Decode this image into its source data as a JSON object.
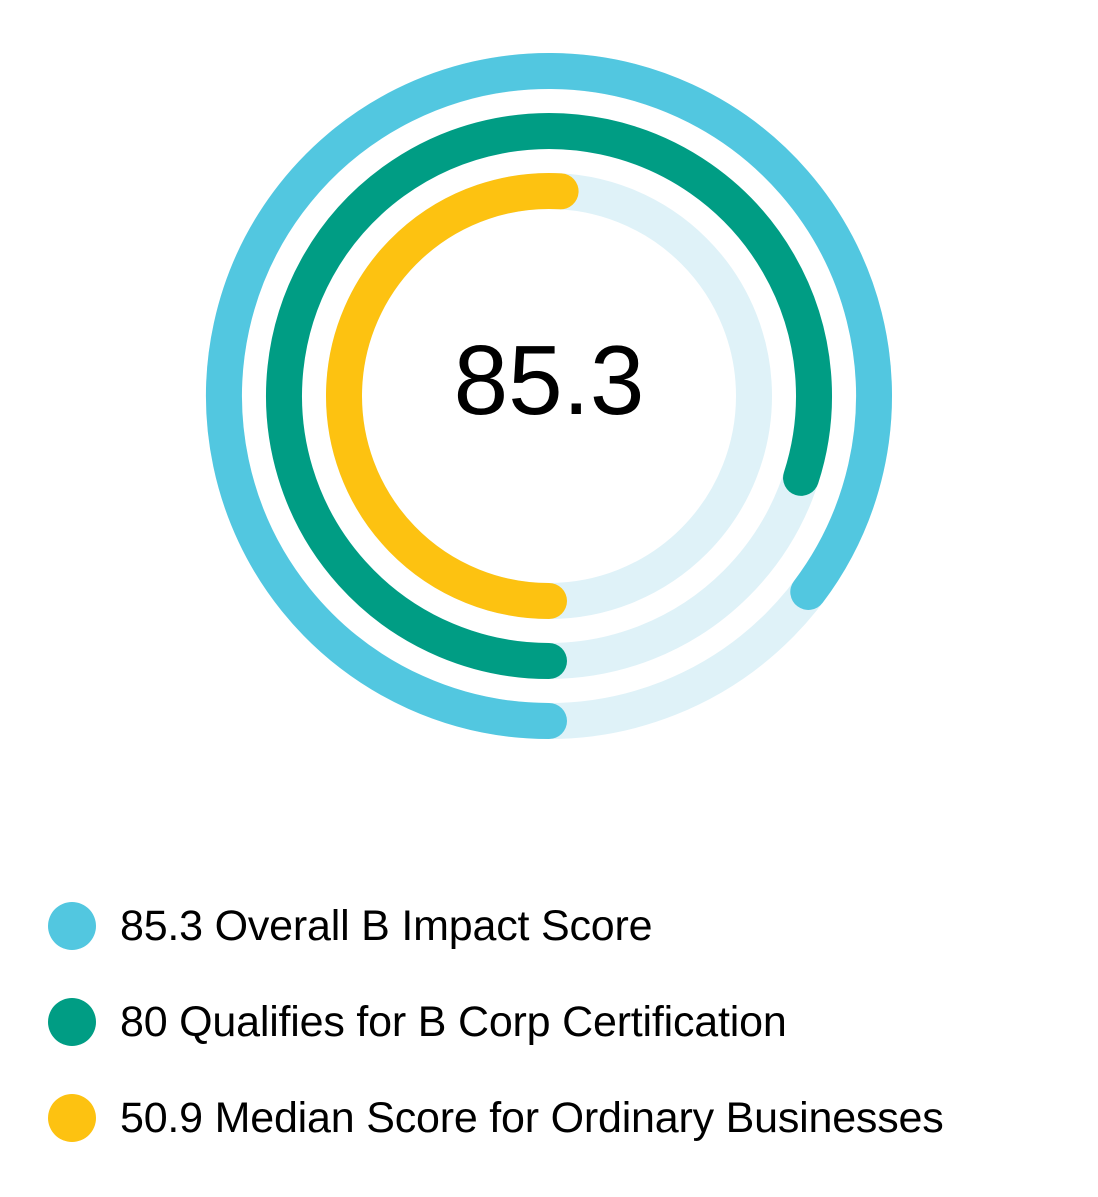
{
  "chart_data": {
    "type": "radial-bar",
    "center_label": "85.3",
    "max": 100,
    "track_color": "#dff2f8",
    "series": [
      {
        "name": "Overall B Impact Score",
        "value": 85.3,
        "label": "85.3 Overall B Impact Score",
        "color": "#52c7e0"
      },
      {
        "name": "Qualifies for B Corp Certification",
        "value": 80,
        "label": "80 Qualifies for B Corp Certification",
        "color": "#009d84"
      },
      {
        "name": "Median Score for Ordinary Businesses",
        "value": 50.9,
        "label": "50.9 Median Score for Ordinary Businesses",
        "color": "#fdc211"
      }
    ]
  }
}
